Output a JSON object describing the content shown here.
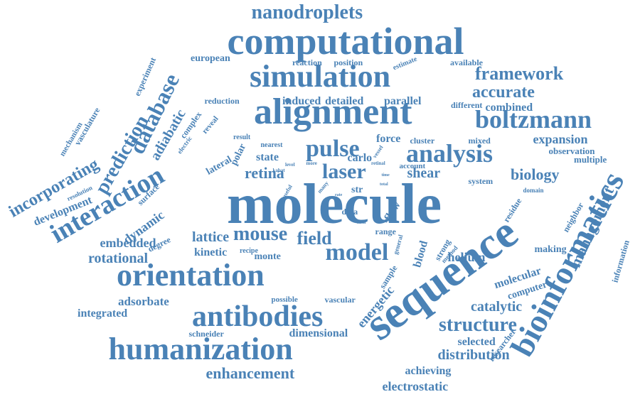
{
  "style": {
    "word_color": "#4a82b6",
    "background": "#ffffff"
  },
  "words": [
    "nanodroplets",
    "computational",
    "simulation",
    "alignment",
    "boltzmann",
    "framework",
    "accurate",
    "combined",
    "analysis",
    "pulse",
    "laser",
    "retina",
    "shear",
    "biology",
    "molecule",
    "sequence",
    "bioinformatics",
    "orientation",
    "antibodies",
    "humanization",
    "enhancement",
    "interaction",
    "prediction",
    "database",
    "adiabatic",
    "incorporating",
    "development",
    "rotational",
    "embedded",
    "dynamic",
    "lattice",
    "mouse",
    "field",
    "model",
    "kinetic",
    "monte",
    "recipe",
    "adsorbate",
    "integrated",
    "catalytic",
    "structure",
    "distribution",
    "selected",
    "achieving",
    "electrostatic",
    "dimensional",
    "schneider",
    "helium",
    "making",
    "molecular",
    "computer",
    "expansion",
    "observation",
    "multiple",
    "system",
    "domain",
    "management",
    "information",
    "researcher",
    "vasculature",
    "mechanism",
    "resolution",
    "surface",
    "degree",
    "lateral",
    "state",
    "force",
    "cluster",
    "polar",
    "nearest",
    "result",
    "induced",
    "detailed",
    "parallel",
    "different",
    "reduction",
    "reveal",
    "complex",
    "electric",
    "experiment",
    "european",
    "reaction",
    "position",
    "estimate",
    "available",
    "mixed",
    "carlo",
    "vessel",
    "more",
    "kabat",
    "level",
    "account",
    "retinal",
    "time",
    "total",
    "many",
    "useful",
    "rate",
    "str",
    "flow",
    "data",
    "best",
    "term",
    "range",
    "general",
    "blood",
    "strong",
    "method",
    "sample",
    "energetic",
    "possible",
    "vascular",
    "residue",
    "neighbor"
  ]
}
